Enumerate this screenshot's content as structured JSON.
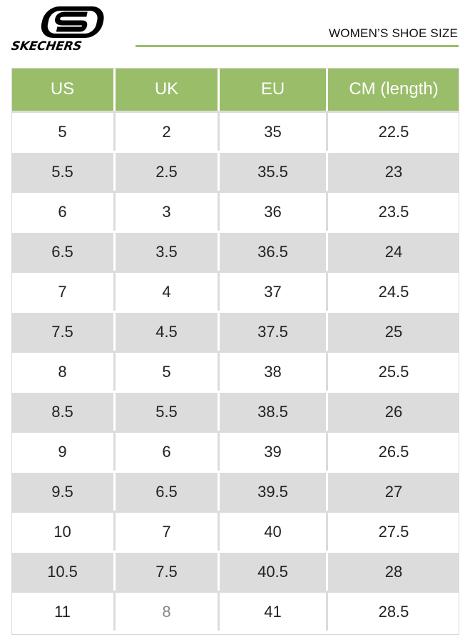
{
  "brand": {
    "logo_text": "SKECHERS",
    "accent_color": "#9abd6a"
  },
  "title": "WOMEN’S SHOE SIZE",
  "table": {
    "headers": [
      "US",
      "UK",
      "EU",
      "CM (length)"
    ],
    "rows": [
      [
        "5",
        "2",
        "35",
        "22.5"
      ],
      [
        "5.5",
        "2.5",
        "35.5",
        "23"
      ],
      [
        "6",
        "3",
        "36",
        "23.5"
      ],
      [
        "6.5",
        "3.5",
        "36.5",
        "24"
      ],
      [
        "7",
        "4",
        "37",
        "24.5"
      ],
      [
        "7.5",
        "4.5",
        "37.5",
        "25"
      ],
      [
        "8",
        "5",
        "38",
        "25.5"
      ],
      [
        "8.5",
        "5.5",
        "38.5",
        "26"
      ],
      [
        "9",
        "6",
        "39",
        "26.5"
      ],
      [
        "9.5",
        "6.5",
        "39.5",
        "27"
      ],
      [
        "10",
        "7",
        "40",
        "27.5"
      ],
      [
        "10.5",
        "7.5",
        "40.5",
        "28"
      ],
      [
        "11",
        "8",
        "41",
        "28.5"
      ]
    ]
  }
}
